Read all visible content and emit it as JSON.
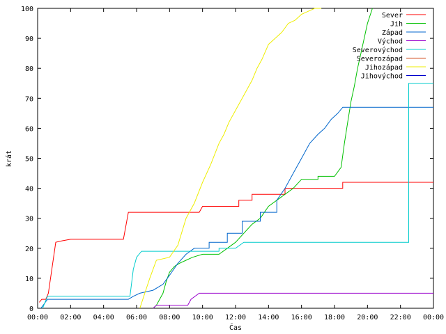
{
  "chart_data": {
    "type": "line",
    "xlabel": "Čas",
    "ylabel": "krát",
    "x_unit": "hour of day",
    "xlim": [
      0,
      24
    ],
    "ylim": [
      0,
      100
    ],
    "x_ticks": [
      {
        "value": 0,
        "label": "00:00"
      },
      {
        "value": 2,
        "label": "02:00"
      },
      {
        "value": 4,
        "label": "04:00"
      },
      {
        "value": 6,
        "label": "06:00"
      },
      {
        "value": 8,
        "label": "08:00"
      },
      {
        "value": 10,
        "label": "10:00"
      },
      {
        "value": 12,
        "label": "12:00"
      },
      {
        "value": 14,
        "label": "14:00"
      },
      {
        "value": 16,
        "label": "16:00"
      },
      {
        "value": 18,
        "label": "18:00"
      },
      {
        "value": 20,
        "label": "20:00"
      },
      {
        "value": 22,
        "label": "22:00"
      },
      {
        "value": 24,
        "label": "00:00"
      }
    ],
    "y_ticks": [
      {
        "value": 0,
        "label": "0"
      },
      {
        "value": 10,
        "label": "10"
      },
      {
        "value": 20,
        "label": "20"
      },
      {
        "value": 30,
        "label": "30"
      },
      {
        "value": 40,
        "label": "40"
      },
      {
        "value": 50,
        "label": "50"
      },
      {
        "value": 60,
        "label": "60"
      },
      {
        "value": 70,
        "label": "70"
      },
      {
        "value": 80,
        "label": "80"
      },
      {
        "value": 90,
        "label": "90"
      },
      {
        "value": 100,
        "label": "100"
      }
    ],
    "grid": false,
    "legend_position": "top-right",
    "series": [
      {
        "name": "Sever",
        "color": "#ff0000",
        "x": [
          0.1,
          0.25,
          0.5,
          0.65,
          1.1,
          1.5,
          2.0,
          2.5,
          5.2,
          5.5,
          9.8,
          10.0,
          11.0,
          12.2,
          13.0,
          14.1,
          15.0,
          18.5,
          24.0
        ],
        "y": [
          2,
          3,
          3,
          5,
          22,
          22.5,
          23,
          23,
          23,
          32,
          32,
          34,
          34,
          36,
          38,
          38,
          40,
          42,
          42
        ]
      },
      {
        "name": "Jih",
        "color": "#00c000",
        "x": [
          7.0,
          7.2,
          7.4,
          7.6,
          7.8,
          8.0,
          8.3,
          8.6,
          9.0,
          9.4,
          10.0,
          11.0,
          11.5,
          12.0,
          12.5,
          13.0,
          13.5,
          14.0,
          14.5,
          15.0,
          15.5,
          16.0,
          17.0,
          18.0,
          18.4,
          18.6,
          18.8,
          19.0,
          19.2,
          19.4,
          19.6,
          19.8,
          20.0,
          20.3
        ],
        "y": [
          0,
          1,
          3,
          5,
          9,
          12,
          14,
          15,
          16,
          17,
          18,
          18,
          20,
          22,
          25,
          28,
          30,
          34,
          36,
          38,
          40,
          43,
          44,
          44,
          47,
          55,
          62,
          69,
          74,
          80,
          85,
          90,
          95,
          100
        ]
      },
      {
        "name": "Západ",
        "color": "#0066cc",
        "x": [
          0.2,
          0.6,
          5.5,
          5.8,
          6.2,
          7.0,
          7.6,
          8.0,
          8.5,
          9.0,
          9.5,
          10.4,
          11.5,
          12.4,
          13.5,
          14.5,
          15.0,
          15.5,
          16.0,
          16.5,
          17.0,
          17.4,
          17.8,
          18.2,
          18.5,
          24.0
        ],
        "y": [
          0,
          3,
          3,
          4,
          5,
          6,
          8,
          11,
          15,
          18,
          20,
          22,
          25,
          29,
          32,
          36,
          40,
          45,
          50,
          55,
          58,
          60,
          63,
          65,
          67,
          67
        ]
      },
      {
        "name": "Východ",
        "color": "#9900cc",
        "x": [
          7.0,
          7.2,
          9.1,
          9.3,
          9.8,
          24.0
        ],
        "y": [
          0,
          1,
          1,
          3,
          5,
          5
        ]
      },
      {
        "name": "Severovýchod",
        "color": "#00cccc",
        "x": [
          0.3,
          0.6,
          5.6,
          5.8,
          6.0,
          6.3,
          8.0,
          9.4,
          11.0,
          12.0,
          12.5,
          20.8,
          22.5,
          24.0
        ],
        "y": [
          0,
          4,
          4,
          13,
          17,
          19,
          19,
          19,
          20,
          20,
          22,
          22,
          75,
          75
        ]
      },
      {
        "name": "Severozápad",
        "color": "#cc3300",
        "x": [],
        "y": []
      },
      {
        "name": "Jihozápad",
        "color": "#eeee00",
        "x": [
          6.2,
          6.5,
          6.8,
          7.2,
          8.0,
          8.5,
          9.0,
          9.5,
          10.0,
          10.5,
          11.0,
          11.3,
          11.6,
          12.0,
          12.3,
          12.6,
          13.0,
          13.3,
          13.6,
          14.0,
          14.4,
          14.8,
          15.2,
          15.6,
          16.0,
          16.4,
          16.8,
          17.2
        ],
        "y": [
          0,
          5,
          10,
          16,
          17,
          21,
          30,
          35,
          42,
          48,
          55,
          58,
          62,
          66,
          69,
          72,
          76,
          80,
          83,
          88,
          90,
          92,
          95,
          96,
          98,
          99,
          100,
          100
        ]
      },
      {
        "name": "Jihovýchod",
        "color": "#0000cc",
        "x": [],
        "y": []
      }
    ]
  }
}
